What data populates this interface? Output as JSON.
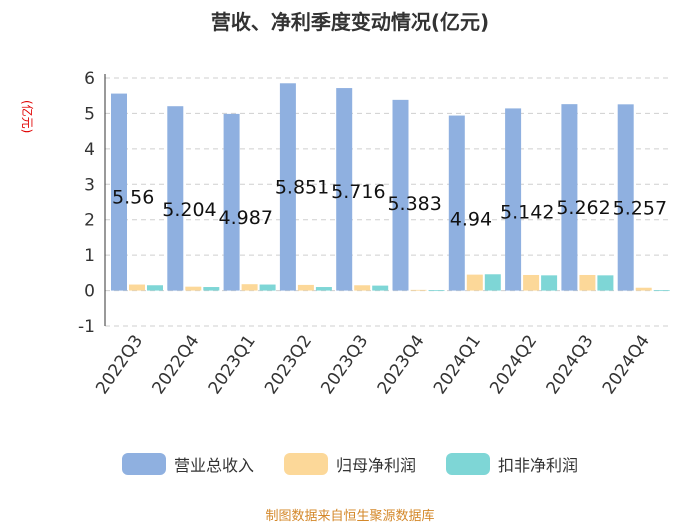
{
  "chart_data": {
    "type": "bar",
    "title": "营收、净利季度变动情况(亿元)",
    "ylabel": "(亿元)",
    "categories": [
      "2022Q3",
      "2022Q4",
      "2023Q1",
      "2023Q2",
      "2023Q3",
      "2023Q4",
      "2024Q1",
      "2024Q2",
      "2024Q3",
      "2024Q4"
    ],
    "series": [
      {
        "name": "营业总收入",
        "color": "#8fb0e0",
        "values": [
          5.56,
          5.204,
          4.987,
          5.851,
          5.716,
          5.383,
          4.94,
          5.142,
          5.262,
          5.257
        ]
      },
      {
        "name": "归母净利润",
        "color": "#fcd899",
        "values": [
          0.17,
          0.11,
          0.18,
          0.16,
          0.15,
          0.02,
          0.45,
          0.44,
          0.44,
          0.08
        ]
      },
      {
        "name": "扣非净利润",
        "color": "#7ed6d6",
        "values": [
          0.15,
          0.1,
          0.17,
          0.1,
          0.14,
          0.01,
          0.46,
          0.43,
          0.43,
          0.01
        ]
      }
    ],
    "data_labels": [
      "5.56",
      "5.204",
      "4.987",
      "5.851",
      "5.716",
      "5.383",
      "4.94",
      "5.142",
      "5.262",
      "5.257"
    ],
    "yticks": [
      "-1",
      "0",
      "1",
      "2",
      "3",
      "4",
      "5",
      "6"
    ],
    "ylim": [
      -1,
      6
    ],
    "grid": true,
    "legend_position": "bottom"
  },
  "footer": {
    "source": "制图数据来自恒生聚源数据库"
  }
}
